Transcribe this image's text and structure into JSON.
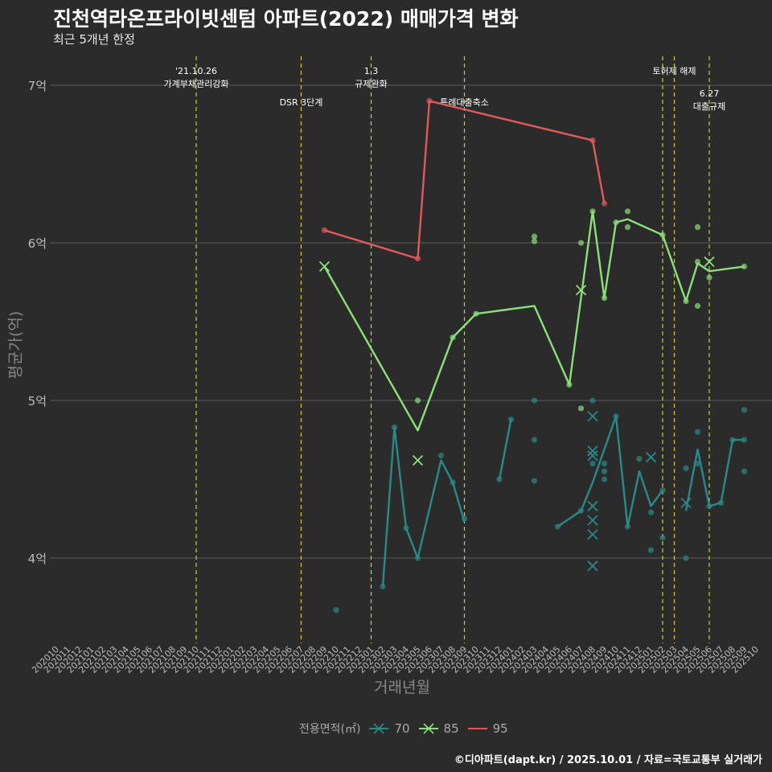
{
  "title": "진천역라온프라이빗센텀 아파트(2022) 매매가격 변화",
  "subtitle": "최근 5개년 한정",
  "caption": "©디아파트(dapt.kr) / 2025.10.01 / 자료=국토교통부 실거래가",
  "colors": {
    "background": "#2b2b2b",
    "grid": "#5a5a5a",
    "vline": "#cccc33",
    "s70": "#2a8a8a",
    "s85": "#8ce07a",
    "s95": "#e05a5a",
    "axis_text": "#bbbbbb"
  },
  "chart_data": {
    "type": "line",
    "title": "진천역라온프라이빗센텀 아파트(2022) 매매가격 변화",
    "subtitle": "최근 5개년 한정",
    "xlabel": "거래년월",
    "ylabel": "평균가(억)",
    "ylim": [
      3.5,
      7.2
    ],
    "yticks": [
      4,
      5,
      6,
      7
    ],
    "ytick_labels": [
      "4억",
      "5억",
      "6억",
      "7억"
    ],
    "x_start": "2020-10",
    "x_end": "2025-10",
    "x_ticks": [
      "202010",
      "202011",
      "202012",
      "202101",
      "202102",
      "202103",
      "202104",
      "202105",
      "202106",
      "202107",
      "202108",
      "202109",
      "202110",
      "202111",
      "202112",
      "202201",
      "202202",
      "202203",
      "202204",
      "202205",
      "202206",
      "202207",
      "202208",
      "202209",
      "202210",
      "202211",
      "202212",
      "202301",
      "202302",
      "202303",
      "202304",
      "202305",
      "202306",
      "202307",
      "202308",
      "202309",
      "202310",
      "202311",
      "202312",
      "202401",
      "202402",
      "202403",
      "202404",
      "202405",
      "202406",
      "202407",
      "202408",
      "202409",
      "202410",
      "202411",
      "202412",
      "202501",
      "202502",
      "202503",
      "202504",
      "202505",
      "202506",
      "202507",
      "202508",
      "202509",
      "202510"
    ],
    "legend_title": "전용면적(㎡)",
    "legend_position": "bottom",
    "grid": true,
    "events": [
      {
        "date": "2021-10",
        "label": "'21.10.26\n가계부채관리강화",
        "level": 1
      },
      {
        "date": "2022-07",
        "label": "DSR 3단계",
        "level": 2
      },
      {
        "date": "2023-01",
        "label": "1.3\n규제완화",
        "level": 1
      },
      {
        "date": "2023-09",
        "label": "특례대출축소",
        "level": 2
      },
      {
        "date": "2025-02",
        "label": "",
        "level": 0
      },
      {
        "date": "2025-03",
        "label": "토허제 해제",
        "level": 1
      },
      {
        "date": "2025-06",
        "label": "6.27\n대출규제",
        "level": 3
      }
    ],
    "series": [
      {
        "name": "70",
        "color": "#2a8a8a",
        "line": [
          [
            "2023-02",
            3.82
          ],
          [
            "2023-03",
            4.83
          ],
          [
            "2023-04",
            4.19
          ],
          [
            "2023-05",
            4.0
          ],
          [
            "2023-07",
            4.62
          ],
          [
            "2023-08",
            4.48
          ],
          [
            "2023-09",
            4.23
          ],
          null,
          [
            "2023-12",
            4.5
          ],
          [
            "2024-01",
            4.88
          ],
          null,
          [
            "2024-05",
            4.2
          ],
          [
            "2024-07",
            4.3
          ],
          [
            "2024-08",
            4.48
          ],
          [
            "2024-10",
            4.9
          ],
          [
            "2024-11",
            4.2
          ],
          [
            "2024-12",
            4.55
          ],
          [
            "2025-01",
            4.33
          ],
          [
            "2025-02",
            4.43
          ],
          null,
          [
            "2025-04",
            4.3
          ],
          [
            "2025-05",
            4.69
          ],
          [
            "2025-06",
            4.33
          ],
          [
            "2025-07",
            4.35
          ],
          [
            "2025-08",
            4.75
          ],
          [
            "2025-09",
            4.75
          ]
        ],
        "points": [
          [
            "2022-10",
            3.67
          ],
          [
            "2023-02",
            3.82
          ],
          [
            "2023-03",
            4.83
          ],
          [
            "2023-04",
            4.19
          ],
          [
            "2023-05",
            4.0
          ],
          [
            "2023-07",
            4.65
          ],
          [
            "2023-08",
            4.48
          ],
          [
            "2023-09",
            4.25
          ],
          [
            "2023-12",
            4.5
          ],
          [
            "2024-01",
            4.88
          ],
          [
            "2024-03",
            5.0
          ],
          [
            "2024-03",
            4.75
          ],
          [
            "2024-03",
            4.49
          ],
          [
            "2024-05",
            4.2
          ],
          [
            "2024-07",
            4.3
          ],
          [
            "2024-08",
            5.0
          ],
          [
            "2024-08",
            4.6
          ],
          [
            "2024-09",
            4.6
          ],
          [
            "2024-09",
            4.55
          ],
          [
            "2024-09",
            4.5
          ],
          [
            "2024-10",
            4.9
          ],
          [
            "2024-11",
            4.2
          ],
          [
            "2024-12",
            4.63
          ],
          [
            "2025-01",
            4.29
          ],
          [
            "2025-01",
            4.05
          ],
          [
            "2025-02",
            4.43
          ],
          [
            "2025-02",
            4.13
          ],
          [
            "2025-04",
            4.57
          ],
          [
            "2025-04",
            4.0
          ],
          [
            "2025-05",
            4.8
          ],
          [
            "2025-05",
            4.6
          ],
          [
            "2025-06",
            4.33
          ],
          [
            "2025-07",
            4.35
          ],
          [
            "2025-08",
            4.75
          ],
          [
            "2025-09",
            4.94
          ],
          [
            "2025-09",
            4.75
          ],
          [
            "2025-09",
            4.55
          ]
        ],
        "crosses": [
          [
            "2024-08",
            4.9
          ],
          [
            "2024-08",
            4.68
          ],
          [
            "2024-08",
            4.65
          ],
          [
            "2024-08",
            4.33
          ],
          [
            "2024-08",
            4.24
          ],
          [
            "2024-08",
            4.15
          ],
          [
            "2024-08",
            3.95
          ],
          [
            "2025-01",
            4.64
          ],
          [
            "2025-04",
            4.35
          ]
        ]
      },
      {
        "name": "85",
        "color": "#8ce07a",
        "line": [
          [
            "2022-09",
            5.85
          ],
          [
            "2023-05",
            4.81
          ],
          [
            "2023-08",
            5.4
          ],
          [
            "2023-10",
            5.55
          ],
          [
            "2024-03",
            5.6
          ],
          [
            "2024-06",
            5.1
          ],
          [
            "2024-08",
            6.2
          ],
          [
            "2024-09",
            5.65
          ],
          [
            "2024-10",
            6.13
          ],
          [
            "2024-11",
            6.15
          ],
          [
            "2025-02",
            6.05
          ],
          [
            "2025-04",
            5.63
          ],
          [
            "2025-05",
            5.87
          ],
          [
            "2025-06",
            5.82
          ],
          [
            "2025-09",
            5.85
          ]
        ],
        "points": [
          [
            "2023-05",
            5.0
          ],
          [
            "2023-08",
            5.4
          ],
          [
            "2023-10",
            5.55
          ],
          [
            "2024-03",
            6.04
          ],
          [
            "2024-03",
            6.01
          ],
          [
            "2024-06",
            5.1
          ],
          [
            "2024-07",
            6.0
          ],
          [
            "2024-07",
            4.95
          ],
          [
            "2024-08",
            6.2
          ],
          [
            "2024-09",
            5.65
          ],
          [
            "2024-10",
            6.13
          ],
          [
            "2024-11",
            6.2
          ],
          [
            "2024-11",
            6.1
          ],
          [
            "2025-02",
            6.05
          ],
          [
            "2025-04",
            5.63
          ],
          [
            "2025-05",
            6.1
          ],
          [
            "2025-05",
            5.88
          ],
          [
            "2025-05",
            5.6
          ],
          [
            "2025-06",
            5.78
          ],
          [
            "2025-09",
            5.85
          ]
        ],
        "crosses": [
          [
            "2022-09",
            5.85
          ],
          [
            "2023-05",
            4.62
          ],
          [
            "2024-07",
            5.7
          ],
          [
            "2025-06",
            5.88
          ]
        ]
      },
      {
        "name": "95",
        "color": "#e05a5a",
        "line": [
          [
            "2022-09",
            6.08
          ],
          [
            "2023-05",
            5.9
          ],
          [
            "2023-06",
            6.9
          ],
          [
            "2024-08",
            6.65
          ],
          [
            "2024-09",
            6.25
          ]
        ],
        "points": [
          [
            "2022-09",
            6.08
          ],
          [
            "2023-05",
            5.9
          ],
          [
            "2023-06",
            6.9
          ],
          [
            "2024-08",
            6.65
          ],
          [
            "2024-09",
            6.25
          ]
        ],
        "crosses": []
      }
    ]
  }
}
